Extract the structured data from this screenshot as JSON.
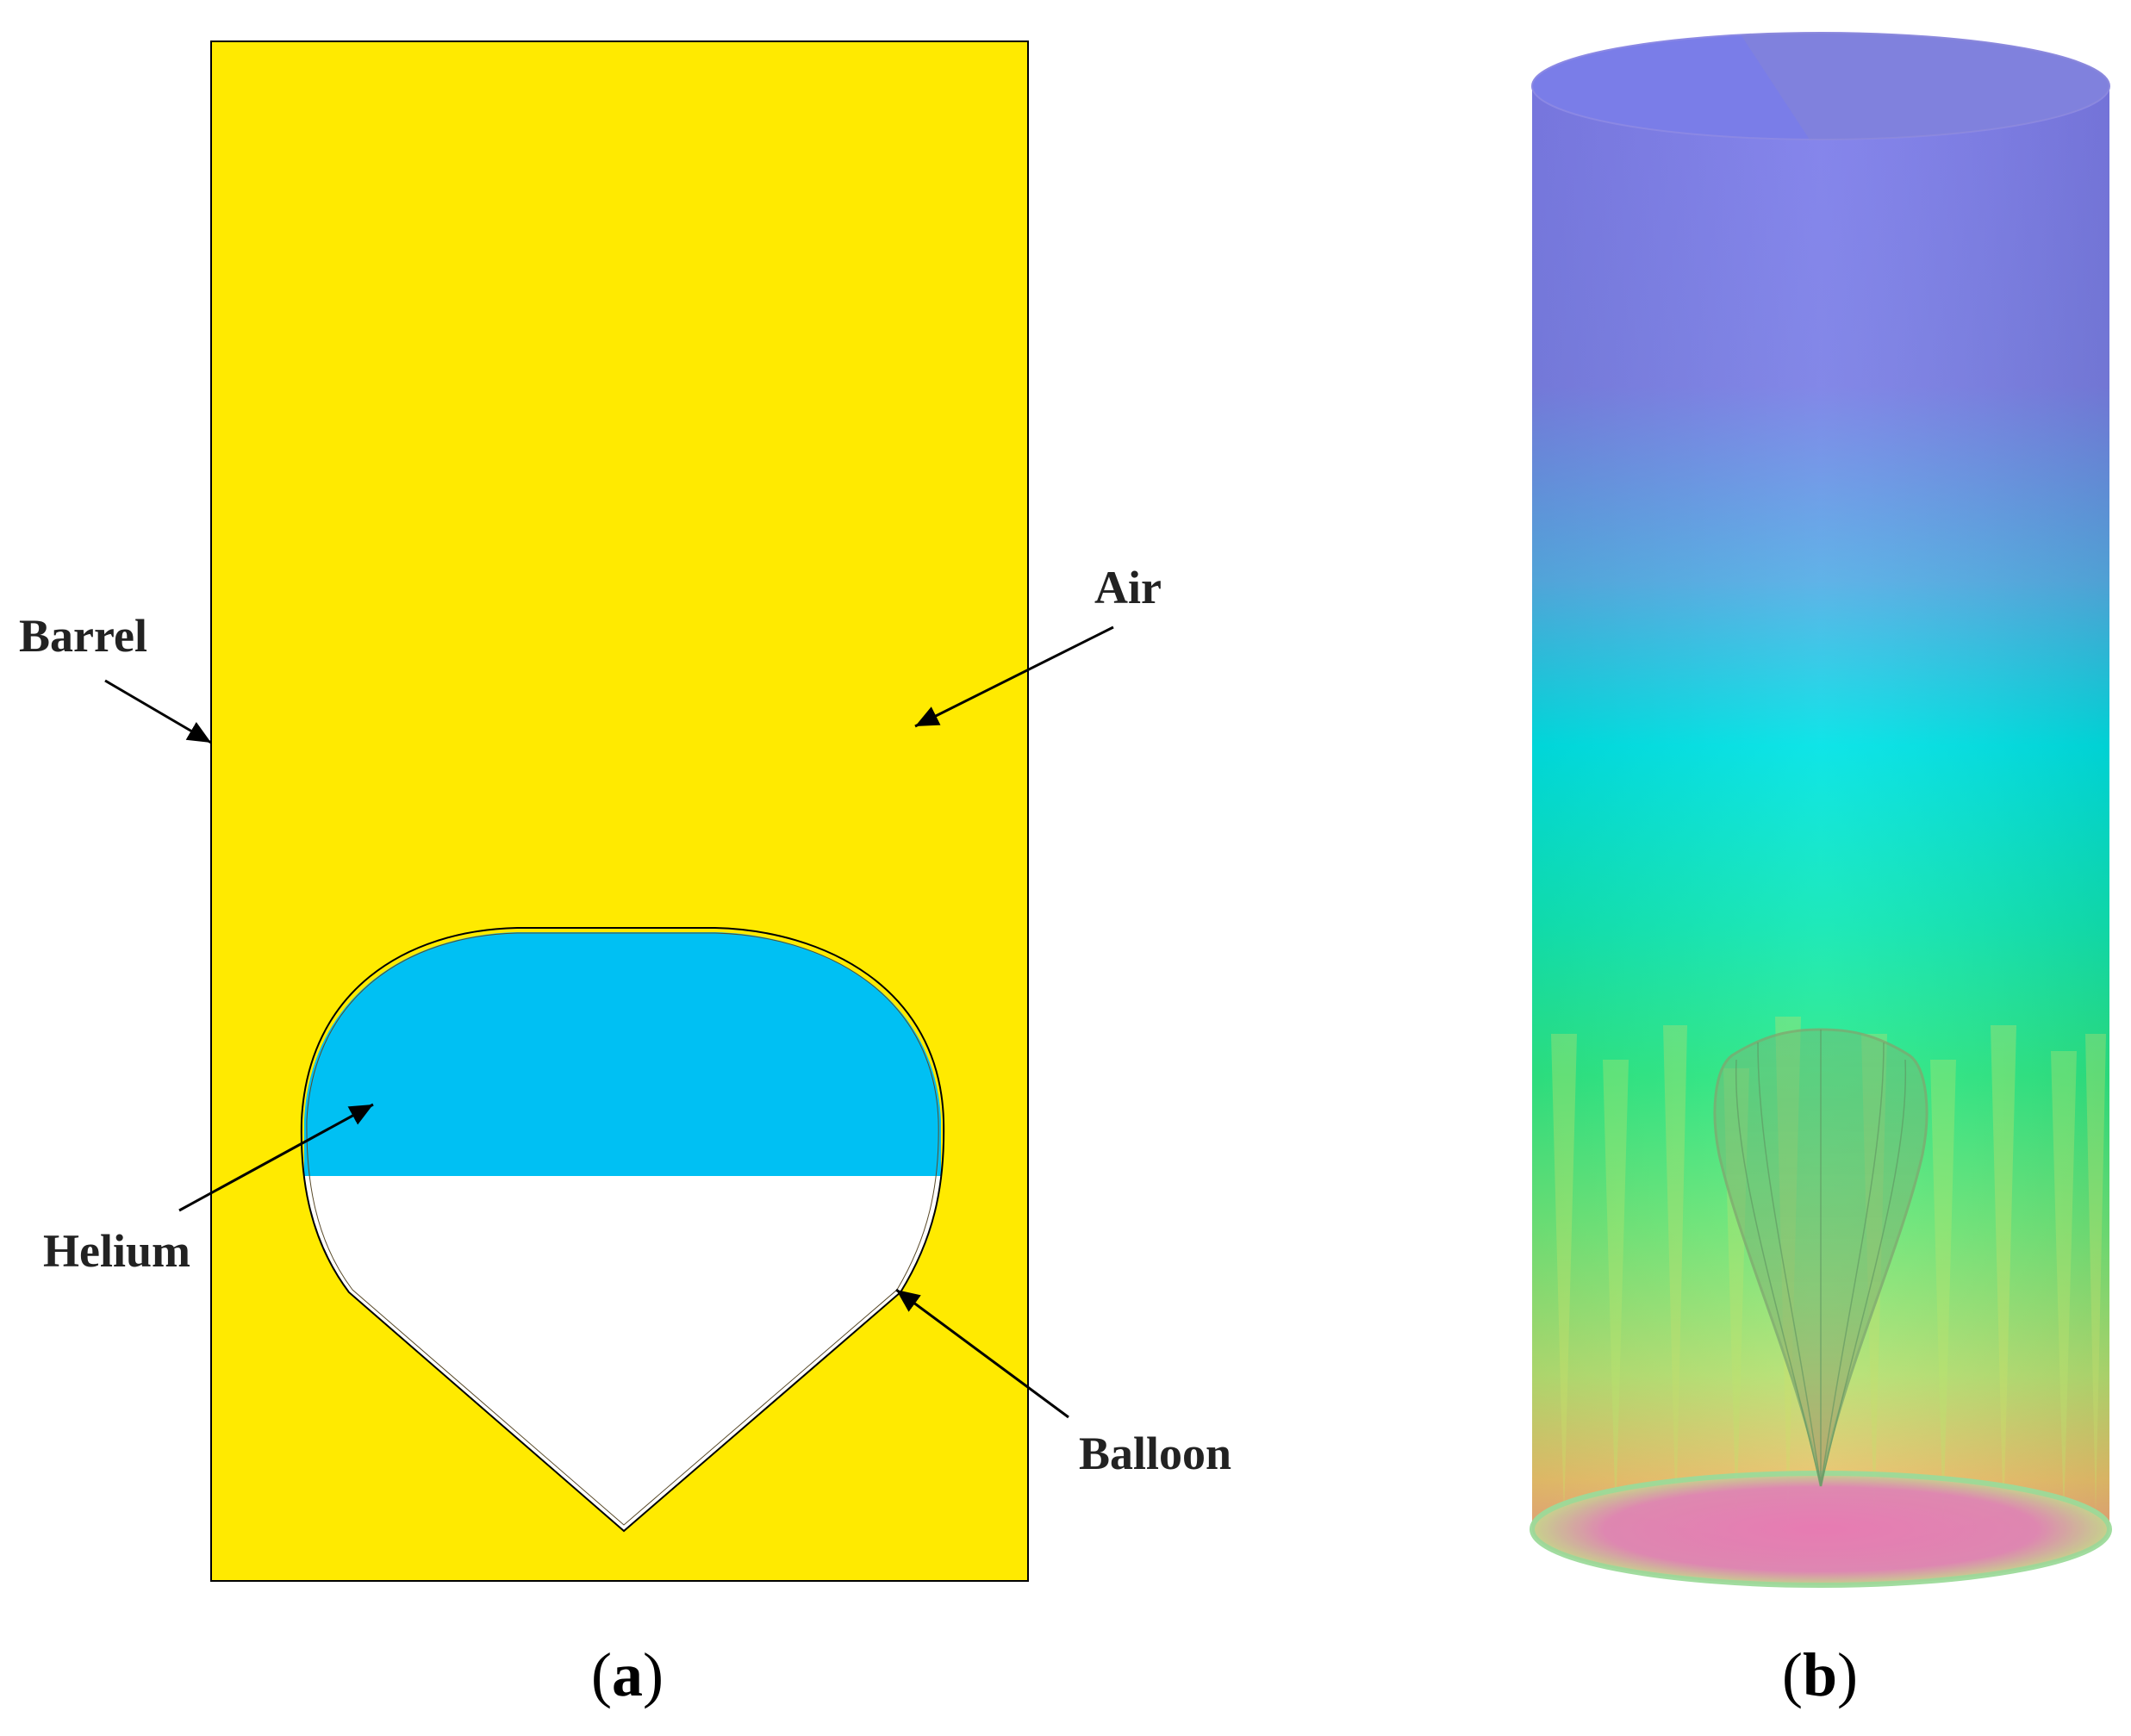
{
  "panel_a": {
    "labels": {
      "barrel": "Barrel",
      "air": "Air",
      "helium": "Helium",
      "balloon": "Balloon"
    },
    "caption_paren_open": "(",
    "caption_letter": "a",
    "caption_paren_close": ")",
    "colors": {
      "air": "#FFEA00",
      "helium": "#00C0F3",
      "balloon_lower": "#FFFFFF",
      "outline": "#000000"
    }
  },
  "panel_b": {
    "caption_paren_open": "(",
    "caption_letter": "b",
    "caption_paren_close": ")",
    "gradient_colors": [
      "#7D79E6",
      "#4FB4E8",
      "#00E6E8",
      "#33E88F",
      "#7FE86A",
      "#E8D768",
      "#EE8C8C"
    ]
  }
}
